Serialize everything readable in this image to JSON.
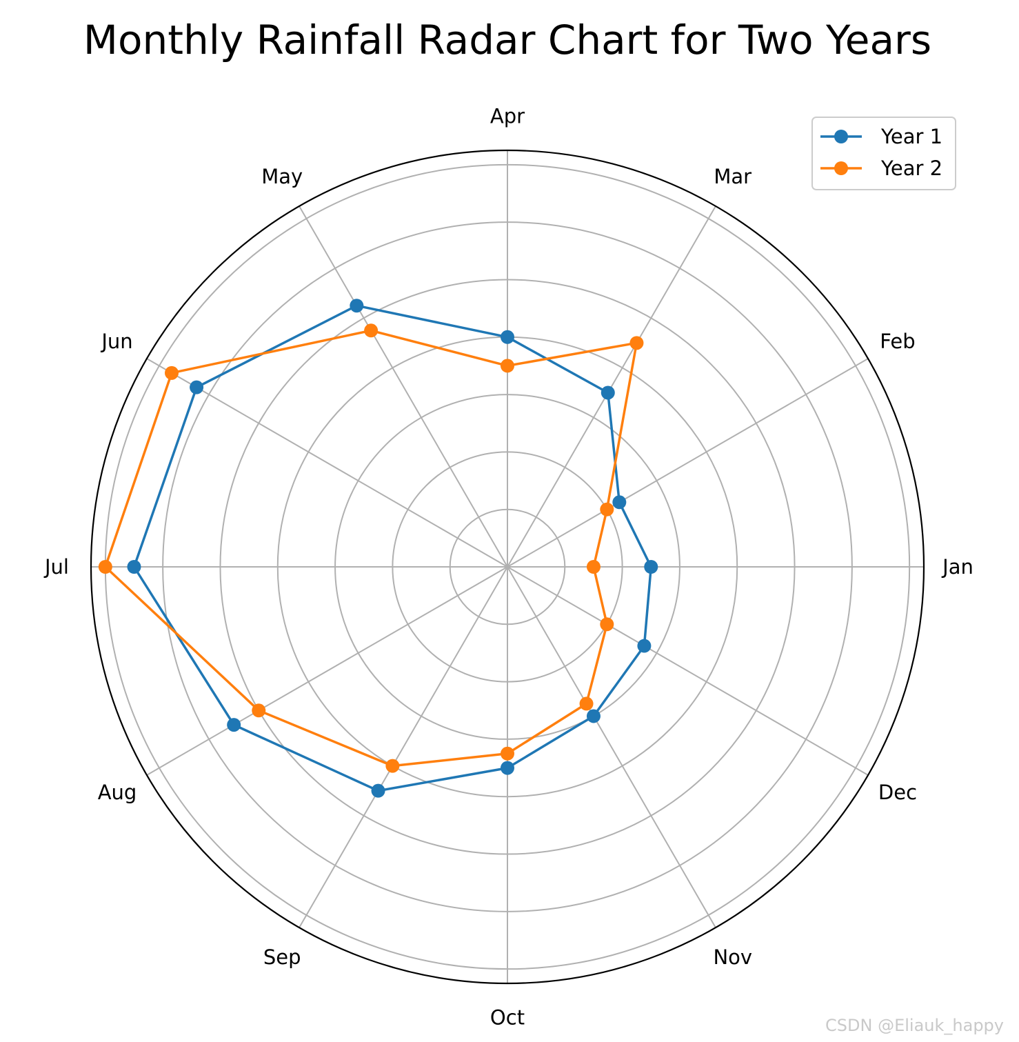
{
  "watermark": "CSDN @Eliauk_happy",
  "chart_data": {
    "type": "radar",
    "title": "Monthly Rainfall Radar Chart for Two Years",
    "categories": [
      "Jan",
      "Feb",
      "Mar",
      "Apr",
      "May",
      "Jun",
      "Jul",
      "Aug",
      "Sep",
      "Oct",
      "Nov",
      "Dec"
    ],
    "series": [
      {
        "name": "Year 1",
        "color": "#1f77b4",
        "values": [
          50,
          45,
          70,
          80,
          105,
          125,
          130,
          110,
          90,
          70,
          60,
          55
        ]
      },
      {
        "name": "Year 2",
        "color": "#ff7f0e",
        "values": [
          30,
          40,
          90,
          70,
          95,
          135,
          140,
          100,
          80,
          65,
          55,
          40
        ]
      }
    ],
    "rlim": [
      0,
      145
    ],
    "ring_step": 20,
    "radial_tick_labels": false,
    "grid": true,
    "legend_position": "top-right",
    "start_angle_deg": 0,
    "direction": "counterclockwise"
  }
}
